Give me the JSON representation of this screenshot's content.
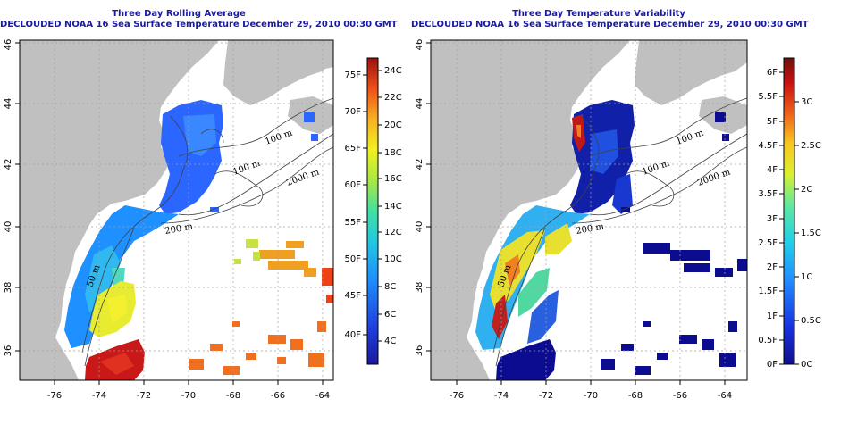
{
  "panels": [
    {
      "title1": "Three Day Rolling Average",
      "title2": "DECLOUDED NOAA 16 Sea Surface Temperature December 29, 2010 00:30 GMT",
      "x_ticks": [
        "-76",
        "-74",
        "-72",
        "-70",
        "-68",
        "-66",
        "-64"
      ],
      "y_ticks": [
        "36",
        "38",
        "40",
        "42",
        "44",
        "46"
      ],
      "contour_labels": [
        "100 m",
        "100 m",
        "2000 m",
        "200 m",
        "50 m"
      ],
      "colorbar": {
        "fahrenheit": [
          "40F",
          "45F",
          "50F",
          "55F",
          "60F",
          "65F",
          "70F",
          "75F"
        ],
        "celsius": [
          "4C",
          "6C",
          "8C",
          "10C",
          "12C",
          "14C",
          "16C",
          "18C",
          "20C",
          "22C",
          "24C"
        ]
      }
    },
    {
      "title1": "Three Day Temperature Variability",
      "title2": "DECLOUDED NOAA 16 Sea Surface Temperature December 29, 2010 00:30 GMT",
      "x_ticks": [
        "-76",
        "-74",
        "-72",
        "-70",
        "-68",
        "-66",
        "-64"
      ],
      "y_ticks": [
        "36",
        "38",
        "40",
        "42",
        "44",
        "46"
      ],
      "contour_labels": [
        "100 m",
        "100 m",
        "2000 m",
        "200 m",
        "50 m"
      ],
      "colorbar": {
        "fahrenheit": [
          "0F",
          "0.5F",
          "1F",
          "1.5F",
          "2F",
          "2.5F",
          "3F",
          "3.5F",
          "4F",
          "4.5F",
          "5F",
          "5.5F",
          "6F"
        ],
        "celsius": [
          "0C",
          "0.5C",
          "1C",
          "1.5C",
          "2C",
          "2.5C",
          "3C"
        ]
      }
    }
  ],
  "colors": {
    "land": "#c0c0c0",
    "title": "#1a1aa6",
    "grid": "#a0a0a0"
  }
}
